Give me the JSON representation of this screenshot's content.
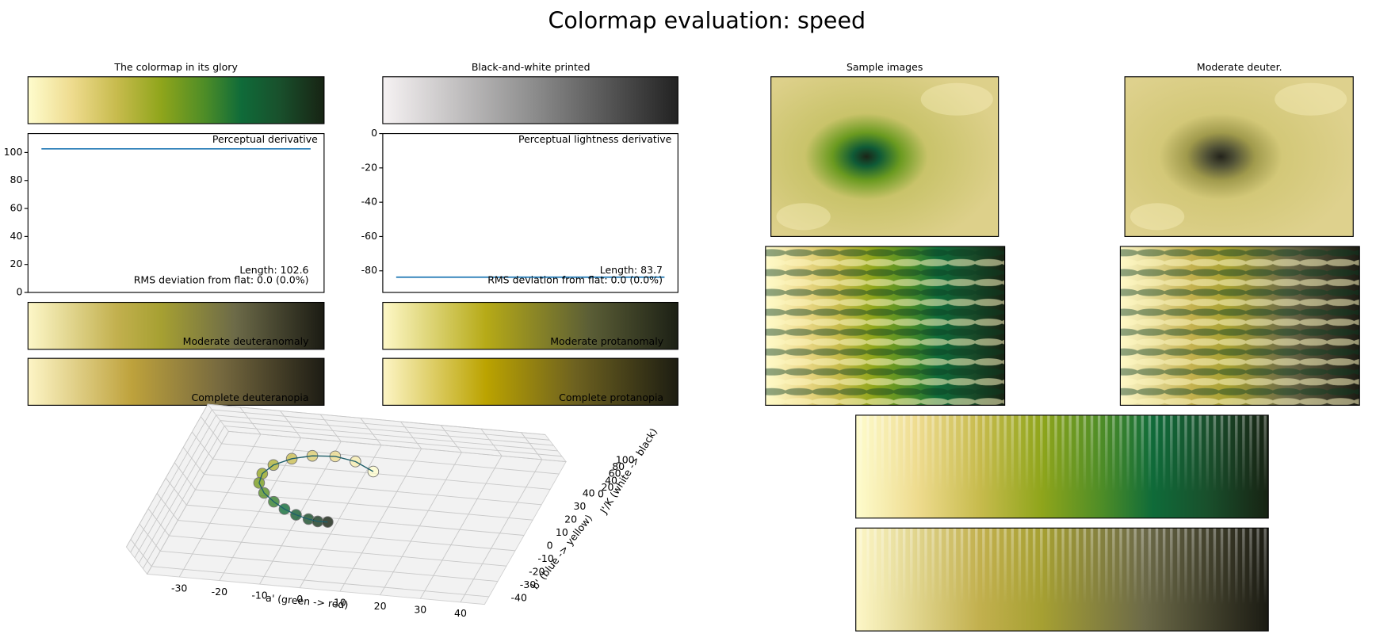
{
  "title": "Colormap evaluation: speed",
  "panels": [
    "The colormap in its glory",
    "Black-and-white printed",
    "Sample images",
    "Moderate deuter."
  ],
  "simulations": [
    "Moderate deuteranomaly",
    "Complete deuteranopia",
    "Moderate protanomaly",
    "Complete protanopia"
  ],
  "chart_data": [
    {
      "type": "line",
      "annotation": "Perceptual derivative",
      "x": [
        0,
        1
      ],
      "values": [
        102.6,
        102.6
      ],
      "xlim": [
        -0.05,
        1.05
      ],
      "ylim": [
        0,
        113.5
      ],
      "yticks": [
        0,
        20,
        40,
        60,
        80,
        100
      ],
      "color": "#1f77b4",
      "notes": [
        "Length: 102.6",
        "RMS deviation from flat: 0.0 (0.0%)"
      ]
    },
    {
      "type": "line",
      "annotation": "Perceptual lightness derivative",
      "x": [
        0,
        1
      ],
      "values": [
        -83.7,
        -83.7
      ],
      "xlim": [
        -0.05,
        1.05
      ],
      "ylim": [
        -92.6,
        0
      ],
      "yticks": [
        0,
        -20,
        -40,
        -60,
        -80
      ],
      "color": "#1f77b4",
      "notes": [
        "Length: 83.7",
        "RMS deviation from flat: 0.0 (0.0%)"
      ]
    },
    {
      "type": "scatter3d",
      "xlabel": "a' (green -> red)",
      "ylabel": "b' (blue -> yellow)",
      "zlabel": "J'/K (white -> black)",
      "x": [
        10,
        4,
        -2,
        -8,
        -13,
        -17,
        -19,
        -19,
        -17,
        -14,
        -11,
        -8,
        -5,
        -3,
        -1
      ],
      "y": [
        16,
        22,
        25,
        25,
        23,
        19,
        14,
        9,
        4,
        0,
        -3,
        -5,
        -6,
        -6,
        -5
      ],
      "z": [
        97,
        92,
        86,
        80,
        74,
        68,
        62,
        56,
        50,
        44,
        38,
        32,
        26,
        20,
        15
      ],
      "xlim": [
        -38,
        46
      ],
      "ylim": [
        -45,
        48
      ],
      "zlim": [
        0,
        100
      ],
      "xticks": [
        -30,
        -20,
        -10,
        0,
        10,
        20,
        30,
        40
      ],
      "yticks": [
        -40,
        -30,
        -20,
        -10,
        0,
        10,
        20,
        30,
        40
      ],
      "zticks": [
        0,
        20,
        40,
        60,
        80,
        100
      ]
    }
  ]
}
